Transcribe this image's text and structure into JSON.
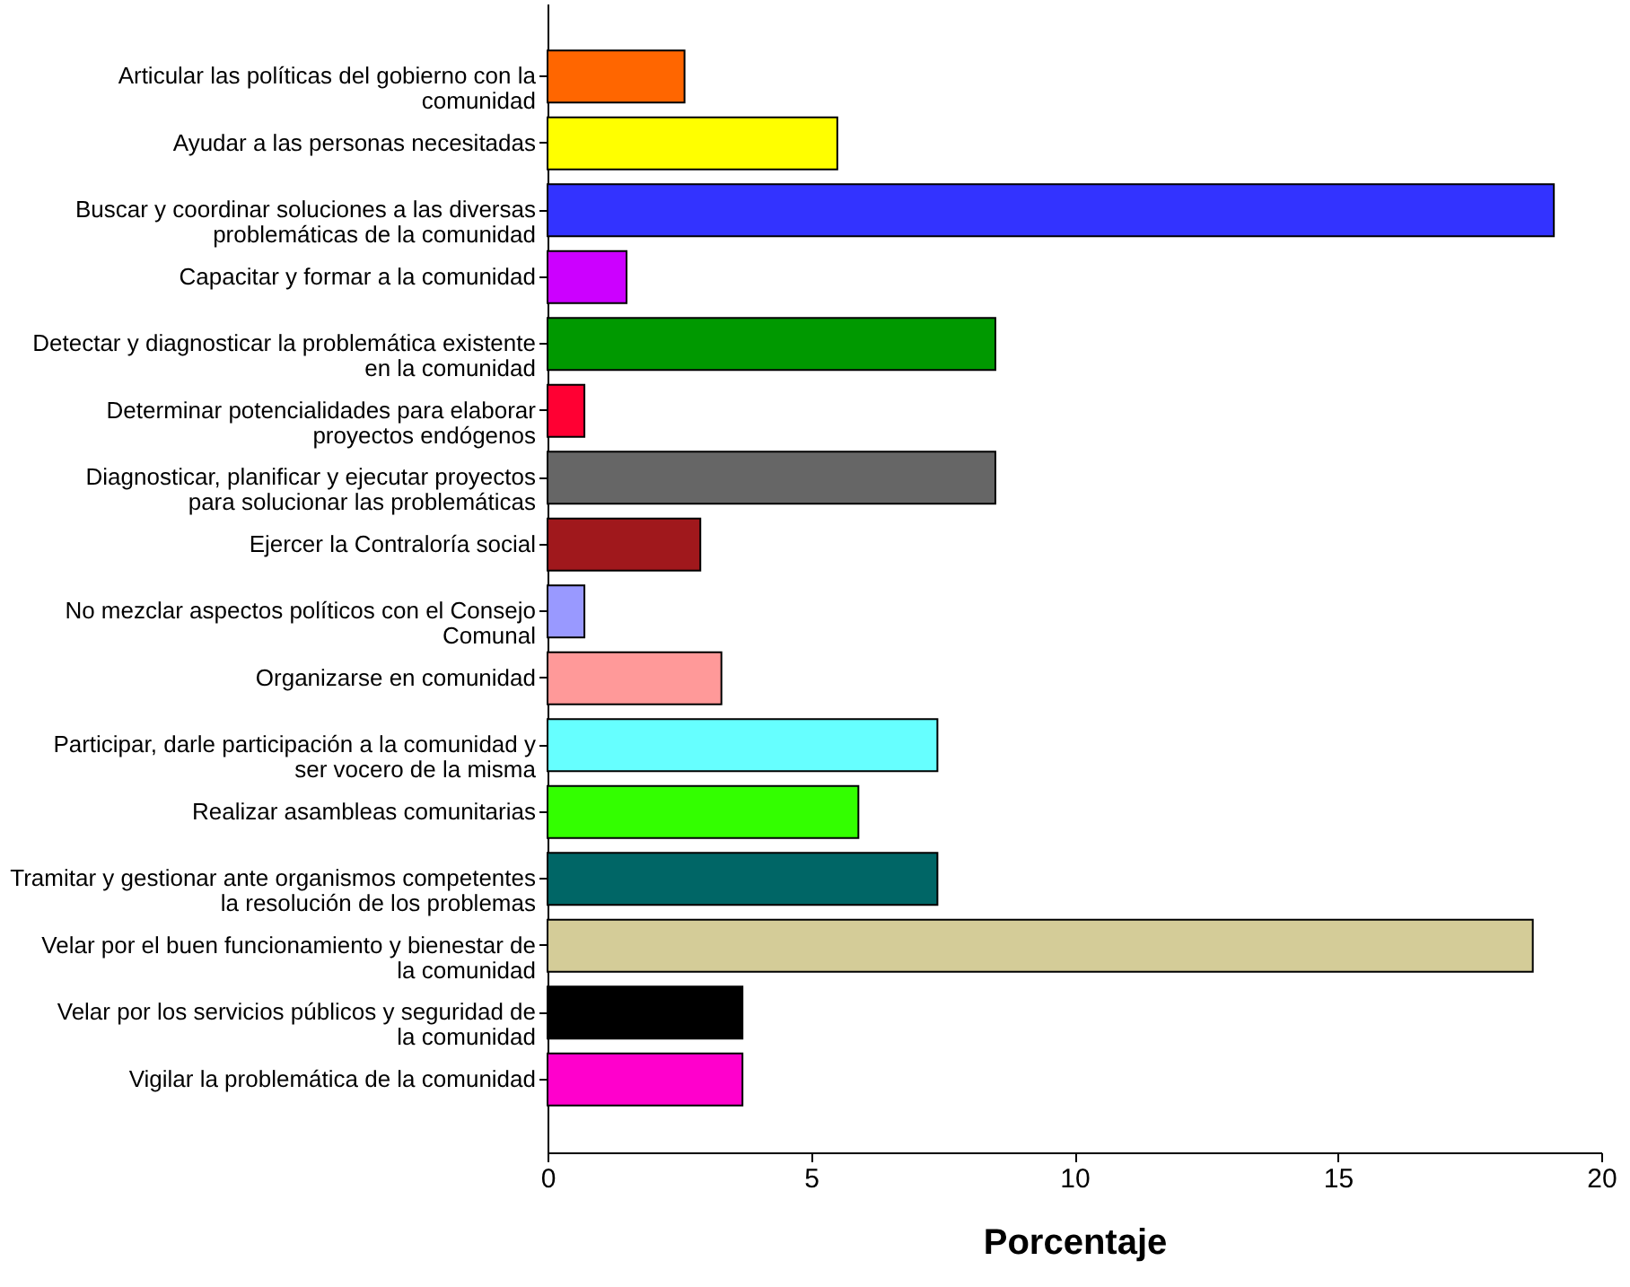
{
  "chart_data": {
    "type": "bar",
    "orientation": "horizontal",
    "xlabel": "Porcentaje",
    "categories": [
      "Articular las políticas del gobierno con la comunidad",
      "Ayudar a las personas necesitadas",
      "Buscar y coordinar soluciones a las diversas problemáticas de la comunidad",
      "Capacitar y formar a la comunidad",
      "Detectar y diagnosticar la problemática existente en la comunidad",
      "Determinar potencialidades para elaborar proyectos endógenos",
      "Diagnosticar, planificar y ejecutar proyectos para solucionar las problemáticas",
      "Ejercer la Contraloría social",
      "No mezclar aspectos políticos con el Consejo Comunal",
      "Organizarse en comunidad",
      "Participar, darle participación a la comunidad y ser vocero de la misma",
      "Realizar asambleas comunitarias",
      "Tramitar y gestionar ante organismos competentes la resolución de los problemas",
      "Velar por el buen funcionamiento y bienestar de la comunidad",
      "Velar por los servicios públicos y seguridad de la comunidad",
      "Vigilar la problemática de la comunidad"
    ],
    "values": [
      2.6,
      5.5,
      19.1,
      1.5,
      8.5,
      0.7,
      8.5,
      2.9,
      0.7,
      3.3,
      7.4,
      5.9,
      7.4,
      18.7,
      3.7,
      3.7
    ],
    "colors": [
      "#ff6600",
      "#ffff00",
      "#3333ff",
      "#cc00ff",
      "#009900",
      "#ff0033",
      "#666666",
      "#a0181c",
      "#9999ff",
      "#ff9999",
      "#66ffff",
      "#33ff00",
      "#006666",
      "#d4cc98",
      "#000000",
      "#ff00cc"
    ],
    "xlim": [
      0,
      20
    ],
    "xticks": [
      0,
      5,
      10,
      15,
      20
    ],
    "grid": false,
    "legend": false
  }
}
